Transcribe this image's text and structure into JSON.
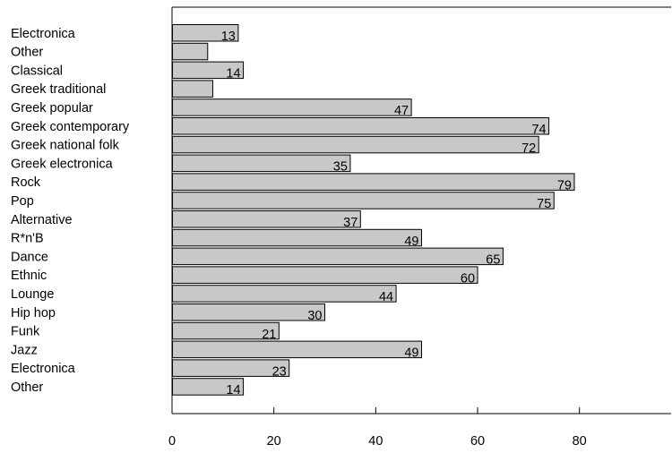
{
  "chart_data": {
    "type": "bar",
    "orientation": "horizontal",
    "title": "",
    "xlabel": "",
    "ylabel": "",
    "xlim": [
      0,
      98
    ],
    "xticks": [
      0,
      20,
      40,
      60,
      80
    ],
    "grid": false,
    "legend": "none",
    "categories": [
      "Electronica",
      "Other",
      "Classical",
      "Greek traditional",
      "Greek popular",
      "Greek contemporary",
      "Greek national folk",
      "Greek electronica",
      "Rock",
      "Pop",
      "Alternative",
      "R*n'B",
      "Dance",
      "Ethnic",
      "Lounge",
      "Hip hop",
      "Funk",
      "Jazz",
      "Electronica",
      "Other"
    ],
    "values": [
      13,
      7,
      14,
      8,
      47,
      74,
      72,
      35,
      79,
      75,
      37,
      49,
      65,
      60,
      44,
      30,
      21,
      49,
      23,
      14
    ],
    "value_labels": [
      "13",
      "",
      "14",
      "",
      "47",
      "74",
      "72",
      "35",
      "79",
      "75",
      "37",
      "49",
      "65",
      "60",
      "44",
      "30",
      "21",
      "49",
      "23",
      "14"
    ],
    "bar_color": "#c8c8c8",
    "bar_edge_color": "#000000"
  }
}
